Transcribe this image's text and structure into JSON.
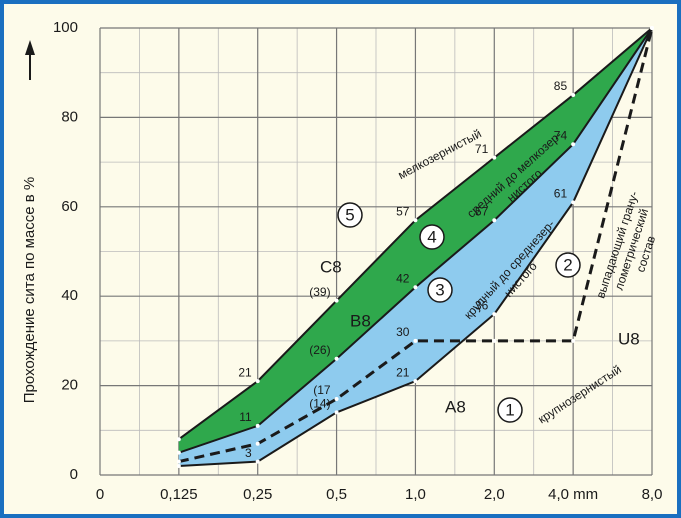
{
  "chart_data": {
    "type": "grading-curve",
    "ylabel": "Прохождение сита по массе в %",
    "categories": [
      "0",
      "0,125",
      "0,25",
      "0,5",
      "1,0",
      "2,0",
      "4,0 mm",
      "8,0"
    ],
    "ylim": [
      0,
      100
    ],
    "yticks": [
      0,
      20,
      40,
      60,
      80,
      100
    ],
    "grid": true,
    "series": [
      {
        "name": "A8",
        "color": "#1a1a1a",
        "values": [
          null,
          2,
          3,
          14,
          21,
          36,
          61,
          100
        ],
        "value_labels": [
          null,
          null,
          "3",
          "(14)",
          "21",
          "36",
          "61",
          null
        ]
      },
      {
        "name": "B8",
        "color": "#1a1a1a",
        "values": [
          null,
          5,
          11,
          26,
          42,
          57,
          74,
          100
        ],
        "value_labels": [
          null,
          null,
          "11",
          "(26)",
          "42",
          "57",
          "74",
          null
        ]
      },
      {
        "name": "C8",
        "color": "#1a1a1a",
        "values": [
          null,
          8,
          21,
          39,
          57,
          71,
          85,
          100
        ],
        "value_labels": [
          null,
          null,
          "21",
          "(39)",
          "57",
          "71",
          "85",
          null
        ]
      },
      {
        "name": "U8",
        "color": "#1a1a1a",
        "dashed": true,
        "values": [
          null,
          3,
          7,
          17,
          30,
          30,
          30,
          100
        ],
        "value_labels": [
          null,
          null,
          null,
          "(17",
          "30",
          null,
          null,
          null
        ]
      }
    ],
    "fills": [
      {
        "upper": 2,
        "lower": 1,
        "color": "#2fa84c"
      },
      {
        "upper": 1,
        "lower": 0,
        "color": "#8ecbee"
      }
    ],
    "zones": [
      {
        "number": "1",
        "lines": [
          "крупнозернистый"
        ]
      },
      {
        "number": "2",
        "lines": [
          "выпадающий грану-",
          "лометрический",
          "состав"
        ]
      },
      {
        "number": "3",
        "lines": [
          "крупный до среднезер-",
          "нистого"
        ]
      },
      {
        "number": "4",
        "lines": [
          "средний до мелкозер-",
          "нистого"
        ]
      },
      {
        "number": "5",
        "lines": [
          "мелкозернистый"
        ]
      }
    ]
  }
}
